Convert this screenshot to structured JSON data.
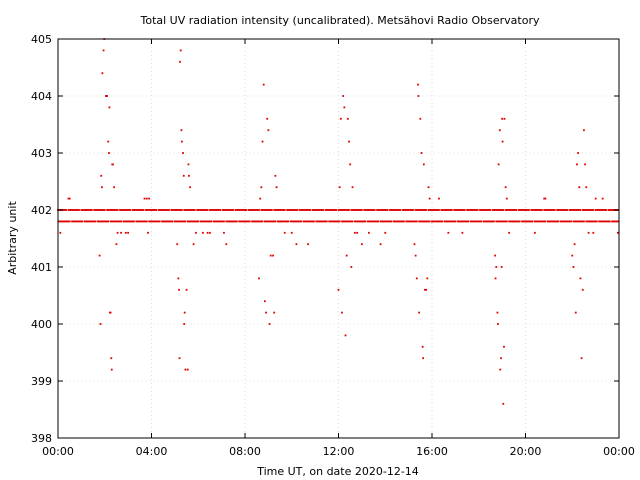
{
  "chart_data": {
    "type": "scatter",
    "title": "Total UV radiation intensity (uncalibrated). Metsähovi Radio Observatory",
    "xlabel": "Time UT, on date 2020-12-14",
    "ylabel": "Arbitrary unit",
    "xlim": [
      0,
      24
    ],
    "ylim": [
      398,
      405
    ],
    "x_ticks": [
      0,
      4,
      8,
      12,
      16,
      20,
      24
    ],
    "x_tick_labels": [
      "00:00",
      "04:00",
      "08:00",
      "12:00",
      "16:00",
      "20:00",
      "00:00"
    ],
    "y_ticks": [
      398,
      399,
      400,
      401,
      402,
      403,
      404,
      405
    ],
    "y_tick_labels": [
      "398",
      "399",
      "400",
      "401",
      "402",
      "403",
      "404",
      "405"
    ],
    "grid": true,
    "series": [
      {
        "color": "#e00000",
        "marker": "dot",
        "note_baseline_levels": [
          401.8,
          402.0
        ],
        "points": [
          [
            0.1,
            401.6
          ],
          [
            0.45,
            402.2
          ],
          [
            0.5,
            402.2
          ],
          [
            1.78,
            401.2
          ],
          [
            1.82,
            400.0
          ],
          [
            1.85,
            402.6
          ],
          [
            1.88,
            402.4
          ],
          [
            1.9,
            404.4
          ],
          [
            1.95,
            404.8
          ],
          [
            1.98,
            405.0
          ],
          [
            2.05,
            404.0
          ],
          [
            2.1,
            404.0
          ],
          [
            2.15,
            403.2
          ],
          [
            2.18,
            403.0
          ],
          [
            2.2,
            403.8
          ],
          [
            2.22,
            400.2
          ],
          [
            2.25,
            400.2
          ],
          [
            2.28,
            399.4
          ],
          [
            2.3,
            399.2
          ],
          [
            2.32,
            402.8
          ],
          [
            2.35,
            402.8
          ],
          [
            2.4,
            402.4
          ],
          [
            2.5,
            401.4
          ],
          [
            2.55,
            401.6
          ],
          [
            2.7,
            401.6
          ],
          [
            2.9,
            401.6
          ],
          [
            3.0,
            401.6
          ],
          [
            3.7,
            402.2
          ],
          [
            3.8,
            402.2
          ],
          [
            3.9,
            402.2
          ],
          [
            3.85,
            401.6
          ],
          [
            5.1,
            401.4
          ],
          [
            5.15,
            400.8
          ],
          [
            5.18,
            400.6
          ],
          [
            5.2,
            399.4
          ],
          [
            5.22,
            404.6
          ],
          [
            5.25,
            404.8
          ],
          [
            5.28,
            403.4
          ],
          [
            5.3,
            403.2
          ],
          [
            5.35,
            403.0
          ],
          [
            5.38,
            402.6
          ],
          [
            5.4,
            400.0
          ],
          [
            5.42,
            400.2
          ],
          [
            5.45,
            399.2
          ],
          [
            5.5,
            400.6
          ],
          [
            5.55,
            399.2
          ],
          [
            5.58,
            402.8
          ],
          [
            5.6,
            402.6
          ],
          [
            5.65,
            402.4
          ],
          [
            5.8,
            401.4
          ],
          [
            5.9,
            401.6
          ],
          [
            6.2,
            401.6
          ],
          [
            6.4,
            401.6
          ],
          [
            6.5,
            401.6
          ],
          [
            7.1,
            401.6
          ],
          [
            7.2,
            401.4
          ],
          [
            8.6,
            400.8
          ],
          [
            8.65,
            402.2
          ],
          [
            8.7,
            402.4
          ],
          [
            8.75,
            403.2
          ],
          [
            8.8,
            404.2
          ],
          [
            8.85,
            400.4
          ],
          [
            8.9,
            400.2
          ],
          [
            8.95,
            403.6
          ],
          [
            9.0,
            403.4
          ],
          [
            9.05,
            400.0
          ],
          [
            9.1,
            401.2
          ],
          [
            9.2,
            401.2
          ],
          [
            9.25,
            400.2
          ],
          [
            9.3,
            402.6
          ],
          [
            9.35,
            402.4
          ],
          [
            9.5,
            401.8
          ],
          [
            9.7,
            401.6
          ],
          [
            10.0,
            401.6
          ],
          [
            10.2,
            401.4
          ],
          [
            10.7,
            401.4
          ],
          [
            12.0,
            400.6
          ],
          [
            12.05,
            402.4
          ],
          [
            12.1,
            403.6
          ],
          [
            12.15,
            400.2
          ],
          [
            12.2,
            404.0
          ],
          [
            12.25,
            403.8
          ],
          [
            12.3,
            399.8
          ],
          [
            12.35,
            401.2
          ],
          [
            12.4,
            403.6
          ],
          [
            12.45,
            403.2
          ],
          [
            12.5,
            402.8
          ],
          [
            12.55,
            401.0
          ],
          [
            12.6,
            402.4
          ],
          [
            12.7,
            401.6
          ],
          [
            12.8,
            401.6
          ],
          [
            13.0,
            401.4
          ],
          [
            13.3,
            401.6
          ],
          [
            13.8,
            401.4
          ],
          [
            14.0,
            401.6
          ],
          [
            15.25,
            401.4
          ],
          [
            15.3,
            401.2
          ],
          [
            15.35,
            400.8
          ],
          [
            15.4,
            404.2
          ],
          [
            15.42,
            404.0
          ],
          [
            15.45,
            400.2
          ],
          [
            15.5,
            403.6
          ],
          [
            15.55,
            403.0
          ],
          [
            15.6,
            399.6
          ],
          [
            15.62,
            399.4
          ],
          [
            15.65,
            402.8
          ],
          [
            15.7,
            400.6
          ],
          [
            15.75,
            400.6
          ],
          [
            15.8,
            400.8
          ],
          [
            15.85,
            402.4
          ],
          [
            15.9,
            402.2
          ],
          [
            16.0,
            401.8
          ],
          [
            16.3,
            402.2
          ],
          [
            16.7,
            401.6
          ],
          [
            17.3,
            401.6
          ],
          [
            18.7,
            401.2
          ],
          [
            18.72,
            400.8
          ],
          [
            18.75,
            401.0
          ],
          [
            18.8,
            400.2
          ],
          [
            18.82,
            400.0
          ],
          [
            18.85,
            402.8
          ],
          [
            18.9,
            403.4
          ],
          [
            18.92,
            399.2
          ],
          [
            18.95,
            399.4
          ],
          [
            18.98,
            401.0
          ],
          [
            19.0,
            403.6
          ],
          [
            19.02,
            403.2
          ],
          [
            19.05,
            398.6
          ],
          [
            19.08,
            399.6
          ],
          [
            19.1,
            403.6
          ],
          [
            19.15,
            402.4
          ],
          [
            19.2,
            402.2
          ],
          [
            19.3,
            401.6
          ],
          [
            19.5,
            401.8
          ],
          [
            20.4,
            401.6
          ],
          [
            20.8,
            402.2
          ],
          [
            20.85,
            402.2
          ],
          [
            22.0,
            401.2
          ],
          [
            22.05,
            401.0
          ],
          [
            22.1,
            401.4
          ],
          [
            22.15,
            400.2
          ],
          [
            22.2,
            402.8
          ],
          [
            22.25,
            403.0
          ],
          [
            22.3,
            402.4
          ],
          [
            22.35,
            400.8
          ],
          [
            22.4,
            399.4
          ],
          [
            22.45,
            400.6
          ],
          [
            22.5,
            403.4
          ],
          [
            22.55,
            402.8
          ],
          [
            22.6,
            402.4
          ],
          [
            22.7,
            401.6
          ],
          [
            22.9,
            401.6
          ],
          [
            23.0,
            402.2
          ],
          [
            23.3,
            402.2
          ],
          [
            23.6,
            401.8
          ],
          [
            23.95,
            401.6
          ]
        ]
      }
    ]
  }
}
